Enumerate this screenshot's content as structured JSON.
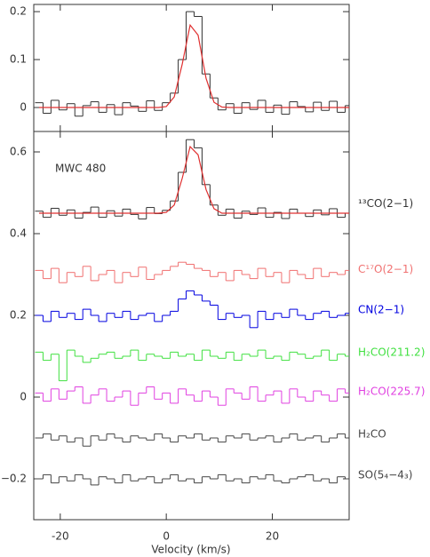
{
  "chart_data": [
    {
      "type": "step",
      "x": [
        -24,
        -22.5,
        -21,
        -19.5,
        -18,
        -16.5,
        -15,
        -13.5,
        -12,
        -10.5,
        -9,
        -7.5,
        -6,
        -4.5,
        -3,
        -1.5,
        0,
        1.5,
        3,
        4.5,
        6,
        7.5,
        9,
        10.5,
        12,
        13.5,
        15,
        16.5,
        18,
        19.5,
        21,
        22.5,
        24,
        25.5,
        27,
        28.5,
        30,
        31.5,
        33,
        34.5
      ],
      "xlim": [
        -25,
        34.5
      ],
      "ylim": [
        -0.05,
        0.215
      ],
      "xticks": [
        -20,
        0,
        20
      ],
      "xtick_labels": false,
      "yticks": [
        0,
        0.1,
        0.2
      ],
      "series": [
        {
          "color": "#333333",
          "values": [
            0.01,
            -0.012,
            0.015,
            -0.005,
            0.008,
            -0.018,
            0.004,
            0.012,
            -0.01,
            0.006,
            -0.015,
            0.01,
            0.003,
            -0.008,
            0.014,
            -0.006,
            0.01,
            0.03,
            0.1,
            0.2,
            0.19,
            0.07,
            0.02,
            -0.005,
            0.008,
            -0.012,
            0.01,
            -0.004,
            0.015,
            -0.01,
            0.005,
            -0.014,
            0.012,
            0.002,
            -0.009,
            0.011,
            -0.006,
            0.013,
            -0.01,
            0.004
          ]
        }
      ],
      "fit": {
        "color": "#e03030",
        "values": [
          0,
          0,
          0,
          0,
          0,
          0,
          0,
          0,
          0,
          0,
          0,
          0,
          0,
          0,
          0,
          0,
          0.002,
          0.022,
          0.09,
          0.172,
          0.151,
          0.061,
          0.011,
          0.001,
          0,
          0,
          0,
          0,
          0,
          0,
          0,
          0,
          0,
          0,
          0,
          0,
          0,
          0,
          0,
          0
        ]
      }
    },
    {
      "type": "step",
      "annotation": "MWC 480",
      "xlabel": "Velocity (km/s)",
      "x": [
        -24,
        -22.5,
        -21,
        -19.5,
        -18,
        -16.5,
        -15,
        -13.5,
        -12,
        -10.5,
        -9,
        -7.5,
        -6,
        -4.5,
        -3,
        -1.5,
        0,
        1.5,
        3,
        4.5,
        6,
        7.5,
        9,
        10.5,
        12,
        13.5,
        15,
        16.5,
        18,
        19.5,
        21,
        22.5,
        24,
        25.5,
        27,
        28.5,
        30,
        31.5,
        33,
        34.5
      ],
      "xlim": [
        -25,
        34.5
      ],
      "ylim": [
        -0.3,
        0.65
      ],
      "xticks": [
        -20,
        0,
        20
      ],
      "xtick_labels": true,
      "yticks": [
        {
          "value": -0.2,
          "label": "−0.2"
        },
        0,
        0.2,
        0.4,
        0.6
      ],
      "series": [
        {
          "name": "¹³CO(2−1)",
          "color": "#333333",
          "values": [
            0.455,
            0.44,
            0.462,
            0.445,
            0.458,
            0.438,
            0.452,
            0.465,
            0.44,
            0.456,
            0.443,
            0.46,
            0.447,
            0.436,
            0.464,
            0.449,
            0.457,
            0.48,
            0.55,
            0.63,
            0.61,
            0.52,
            0.47,
            0.445,
            0.46,
            0.438,
            0.455,
            0.447,
            0.463,
            0.44,
            0.452,
            0.437,
            0.46,
            0.45,
            0.442,
            0.458,
            0.446,
            0.461,
            0.44,
            0.45
          ]
        },
        {
          "name": "C¹⁷O(2−1)",
          "color": "#f07070",
          "values": [
            0.31,
            0.29,
            0.315,
            0.28,
            0.305,
            0.295,
            0.32,
            0.285,
            0.3,
            0.31,
            0.28,
            0.305,
            0.295,
            0.318,
            0.288,
            0.3,
            0.31,
            0.32,
            0.33,
            0.325,
            0.315,
            0.31,
            0.295,
            0.305,
            0.285,
            0.31,
            0.3,
            0.29,
            0.315,
            0.295,
            0.305,
            0.28,
            0.31,
            0.3,
            0.29,
            0.315,
            0.295,
            0.305,
            0.3,
            0.31
          ]
        },
        {
          "name": "CN(2−1)",
          "color": "#0000e0",
          "values": [
            0.2,
            0.185,
            0.21,
            0.195,
            0.205,
            0.19,
            0.215,
            0.2,
            0.185,
            0.205,
            0.195,
            0.21,
            0.19,
            0.2,
            0.205,
            0.185,
            0.2,
            0.21,
            0.24,
            0.26,
            0.25,
            0.235,
            0.225,
            0.19,
            0.205,
            0.195,
            0.2,
            0.17,
            0.21,
            0.19,
            0.205,
            0.195,
            0.215,
            0.2,
            0.19,
            0.205,
            0.21,
            0.195,
            0.2,
            0.205
          ]
        },
        {
          "name": "H₂CO(211.2)",
          "color": "#40e040",
          "values": [
            0.11,
            0.09,
            0.105,
            0.04,
            0.115,
            0.1,
            0.085,
            0.095,
            0.105,
            0.11,
            0.095,
            0.1,
            0.115,
            0.09,
            0.105,
            0.1,
            0.095,
            0.11,
            0.1,
            0.105,
            0.09,
            0.115,
            0.1,
            0.095,
            0.11,
            0.09,
            0.105,
            0.1,
            0.115,
            0.095,
            0.1,
            0.09,
            0.11,
            0.105,
            0.095,
            0.1,
            0.115,
            0.09,
            0.105,
            0.1
          ]
        },
        {
          "name": "H₂CO(225.7)",
          "color": "#e040e0",
          "values": [
            0.01,
            -0.01,
            0.02,
            -0.005,
            0.015,
            0.025,
            -0.015,
            0.005,
            0.02,
            -0.01,
            0.0,
            0.015,
            -0.02,
            0.01,
            0.025,
            -0.005,
            0.01,
            -0.015,
            0.02,
            0.005,
            -0.01,
            0.015,
            0.0,
            -0.02,
            0.02,
            0.01,
            -0.005,
            0.025,
            -0.01,
            0.005,
            0.015,
            -0.015,
            0.02,
            0.0,
            -0.01,
            0.015,
            0.005,
            -0.01,
            0.02,
            0.01
          ]
        },
        {
          "name": "H₂CO",
          "color": "#444444",
          "values": [
            -0.1,
            -0.09,
            -0.105,
            -0.095,
            -0.11,
            -0.1,
            -0.12,
            -0.095,
            -0.105,
            -0.09,
            -0.1,
            -0.11,
            -0.095,
            -0.1,
            -0.105,
            -0.09,
            -0.1,
            -0.11,
            -0.095,
            -0.1,
            -0.09,
            -0.105,
            -0.1,
            -0.11,
            -0.095,
            -0.1,
            -0.09,
            -0.105,
            -0.1,
            -0.095,
            -0.11,
            -0.1,
            -0.09,
            -0.105,
            -0.1,
            -0.095,
            -0.11,
            -0.1,
            -0.09,
            -0.1
          ]
        },
        {
          "name": "SO(5₄−4₃)",
          "color": "#444444",
          "values": [
            -0.2,
            -0.19,
            -0.21,
            -0.195,
            -0.205,
            -0.19,
            -0.2,
            -0.215,
            -0.195,
            -0.2,
            -0.21,
            -0.19,
            -0.205,
            -0.2,
            -0.195,
            -0.21,
            -0.2,
            -0.19,
            -0.205,
            -0.2,
            -0.21,
            -0.195,
            -0.2,
            -0.19,
            -0.205,
            -0.2,
            -0.21,
            -0.195,
            -0.2,
            -0.19,
            -0.205,
            -0.21,
            -0.2,
            -0.195,
            -0.19,
            -0.205,
            -0.2,
            -0.21,
            -0.195,
            -0.2
          ]
        }
      ],
      "fit": {
        "color": "#e03030",
        "values": [
          0.45,
          0.45,
          0.45,
          0.45,
          0.45,
          0.45,
          0.45,
          0.45,
          0.45,
          0.45,
          0.45,
          0.45,
          0.45,
          0.45,
          0.45,
          0.45,
          0.452,
          0.47,
          0.535,
          0.613,
          0.593,
          0.508,
          0.461,
          0.45,
          0.45,
          0.45,
          0.45,
          0.45,
          0.45,
          0.45,
          0.45,
          0.45,
          0.45,
          0.45,
          0.45,
          0.45,
          0.45,
          0.45,
          0.45,
          0.45
        ]
      }
    }
  ]
}
